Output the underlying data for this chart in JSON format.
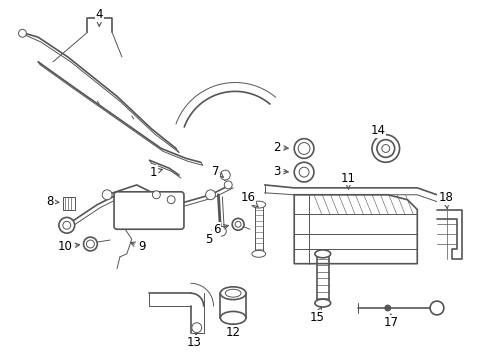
{
  "background_color": "#ffffff",
  "fig_width": 4.89,
  "fig_height": 3.6,
  "dpi": 100,
  "line_color": "#555555",
  "label_fontsize": 8.5,
  "label_color": "#000000"
}
